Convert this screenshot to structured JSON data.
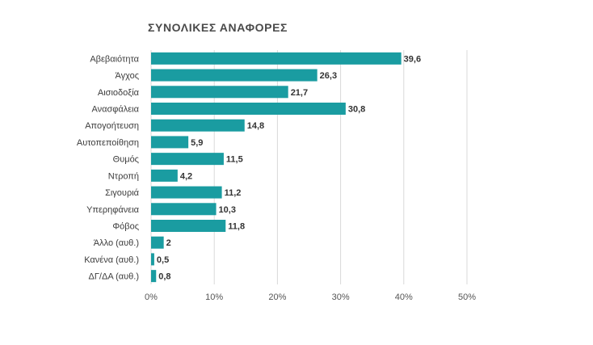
{
  "chart_data": {
    "type": "bar",
    "orientation": "horizontal",
    "title": "ΣΥΝΟΛΙΚΕΣ ΑΝΑΦΟΡΕΣ",
    "categories": [
      "Αβεβαιότητα",
      "Άγχος",
      "Αισιοδοξία",
      "Ανασφάλεια",
      "Απογοήτευση",
      "Αυτοπεποίθηση",
      "Θυμός",
      "Ντροπή",
      "Σιγουριά",
      "Υπερηφάνεια",
      "Φόβος",
      "Άλλο (αυθ.)",
      "Κανένα (αυθ.)",
      "ΔΓ/ΔΑ (αυθ.)"
    ],
    "values": [
      39.6,
      26.3,
      21.7,
      30.8,
      14.8,
      5.9,
      11.5,
      4.2,
      11.2,
      10.3,
      11.8,
      2,
      0.5,
      0.8
    ],
    "value_labels": [
      "39,6",
      "26,3",
      "21,7",
      "30,8",
      "14,8",
      "5,9",
      "11,5",
      "4,2",
      "11,2",
      "10,3",
      "11,8",
      "2",
      "0,5",
      "0,8"
    ],
    "xlim": [
      0,
      50
    ],
    "xticks": [
      0,
      10,
      20,
      30,
      40,
      50
    ],
    "xtick_labels": [
      "0%",
      "10%",
      "20%",
      "30%",
      "40%",
      "50%"
    ],
    "xlabel": "",
    "ylabel": "",
    "grid": true,
    "legend": "none",
    "bar_color": "#1a9ca1",
    "grid_color": "#d9d9d9"
  }
}
